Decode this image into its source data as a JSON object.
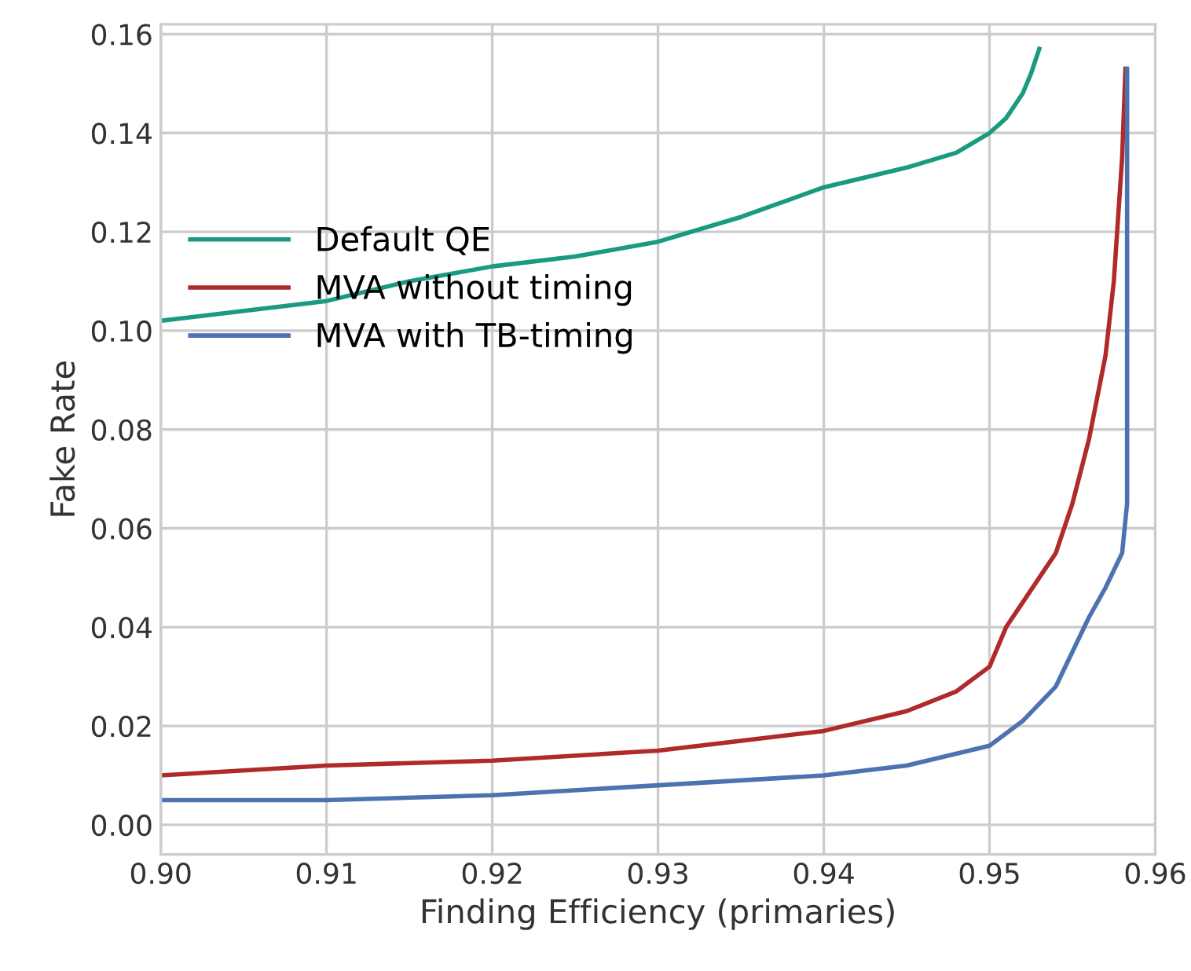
{
  "chart_data": {
    "type": "line",
    "xlabel": "Finding Efficiency (primaries)",
    "ylabel": "Fake Rate",
    "xlim": [
      0.9,
      0.96
    ],
    "xticks": [
      {
        "value": 0.9,
        "label": "0.90"
      },
      {
        "value": 0.91,
        "label": "0.91"
      },
      {
        "value": 0.92,
        "label": "0.92"
      },
      {
        "value": 0.93,
        "label": "0.93"
      },
      {
        "value": 0.94,
        "label": "0.94"
      },
      {
        "value": 0.95,
        "label": "0.95"
      },
      {
        "value": 0.96,
        "label": "0.96"
      }
    ],
    "ylim": [
      -0.006,
      0.162
    ],
    "yticks": [
      {
        "value": 0,
        "label": "0.00"
      },
      {
        "value": 0.02,
        "label": "0.02"
      },
      {
        "value": 0.04,
        "label": "0.04"
      },
      {
        "value": 0.06,
        "label": "0.06"
      },
      {
        "value": 0.08,
        "label": "0.08"
      },
      {
        "value": 0.1,
        "label": "0.10"
      },
      {
        "value": 0.12,
        "label": "0.12"
      },
      {
        "value": 0.14,
        "label": "0.14"
      },
      {
        "value": 0.16,
        "label": "0.16"
      }
    ],
    "grid": true,
    "legend": "left",
    "line_style": "solid",
    "marker": "none",
    "series": [
      {
        "name": "Default QE",
        "color": "#1a9a80",
        "x": [
          0.9,
          0.905,
          0.91,
          0.915,
          0.92,
          0.925,
          0.93,
          0.935,
          0.94,
          0.945,
          0.948,
          0.95,
          0.951,
          0.952,
          0.9525,
          0.953
        ],
        "values": [
          0.102,
          0.104,
          0.106,
          0.11,
          0.113,
          0.115,
          0.118,
          0.123,
          0.129,
          0.133,
          0.136,
          0.14,
          0.143,
          0.148,
          0.152,
          0.157
        ]
      },
      {
        "name": "MVA without timing",
        "color": "#b02a2a",
        "x": [
          0.9,
          0.91,
          0.92,
          0.93,
          0.935,
          0.94,
          0.945,
          0.948,
          0.95,
          0.951,
          0.952,
          0.953,
          0.954,
          0.955,
          0.956,
          0.957,
          0.9575,
          0.958,
          0.9582
        ],
        "values": [
          0.01,
          0.012,
          0.013,
          0.015,
          0.017,
          0.019,
          0.023,
          0.027,
          0.032,
          0.04,
          0.045,
          0.05,
          0.055,
          0.065,
          0.078,
          0.095,
          0.11,
          0.135,
          0.153
        ]
      },
      {
        "name": "MVA with TB-timing",
        "color": "#4c72b0",
        "x": [
          0.9,
          0.91,
          0.92,
          0.93,
          0.94,
          0.945,
          0.95,
          0.952,
          0.954,
          0.955,
          0.956,
          0.957,
          0.958,
          0.9583,
          0.9583
        ],
        "values": [
          0.005,
          0.005,
          0.006,
          0.008,
          0.01,
          0.012,
          0.016,
          0.021,
          0.028,
          0.035,
          0.042,
          0.048,
          0.055,
          0.065,
          0.153
        ]
      }
    ]
  }
}
